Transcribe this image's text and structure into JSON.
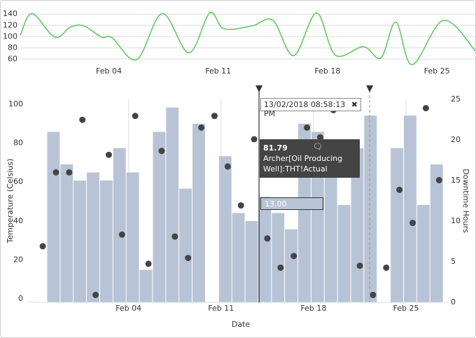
{
  "chart_data": [
    {
      "type": "line",
      "color": "#5cc45c",
      "grid": true,
      "x": [
        "2018-01-29T08:00",
        "2018-01-30T02:00",
        "2018-01-31T13:00",
        "2018-02-01T13:00",
        "2018-02-02T10:00",
        "2018-02-03T13:00",
        "2018-02-04T05:00",
        "2018-02-05T19:00",
        "2018-02-07T10:00",
        "2018-02-09T03:00",
        "2018-02-10T11:00",
        "2018-02-11T09:00",
        "2018-02-13T04:00",
        "2018-02-14T12:00",
        "2018-02-15T20:00",
        "2018-02-17T07:00",
        "2018-02-18T12:00",
        "2018-02-20T07:00",
        "2018-02-21T10:00",
        "2018-02-22T09:00",
        "2018-02-23T10:00",
        "2018-02-25T10:00",
        "2018-02-27T11:00"
      ],
      "values": [
        102,
        141,
        99,
        117,
        119,
        99,
        98,
        59,
        141,
        71,
        142,
        114,
        119,
        129,
        66,
        142,
        67,
        82,
        62,
        126,
        50,
        129,
        75
      ],
      "xlim": [
        "2018-01-29T08:00",
        "2018-02-27T11:00"
      ],
      "ylim": [
        48,
        149
      ],
      "yticks": [
        60,
        80,
        100,
        120,
        140
      ],
      "xticks": [
        {
          "value": "2018-02-04T00:00",
          "label": "Feb 04"
        },
        {
          "value": "2018-02-11T00:00",
          "label": "Feb 11"
        },
        {
          "value": "2018-02-18T00:00",
          "label": "Feb 18"
        },
        {
          "value": "2018-02-25T00:00",
          "label": "Feb 25"
        }
      ]
    },
    {
      "type": "bar",
      "xlabel": "Date",
      "ylabel": "Temperature (Celsius)",
      "y2label": "Downtime Hours",
      "xlim": [
        "2018-01-27T08:00",
        "2018-02-28T03:00"
      ],
      "ylim": [
        -1.8,
        102.5
      ],
      "y2lim": [
        0,
        25
      ],
      "yticks": [
        0,
        20,
        40,
        60,
        80,
        100
      ],
      "y2ticks": [
        0,
        5,
        10,
        15,
        20,
        25
      ],
      "grid": true,
      "xticks": [
        {
          "value": "2018-02-04T00:00",
          "label": "Feb 04"
        },
        {
          "value": "2018-02-11T00:00",
          "label": "Feb 11"
        },
        {
          "value": "2018-02-18T00:00",
          "label": "Feb 18"
        },
        {
          "value": "2018-02-25T00:00",
          "label": "Feb 25"
        }
      ],
      "series": [
        {
          "type": "bar",
          "axis": "y2",
          "color": "#b8c4d6",
          "x": [
            "2018-01-29T00:00",
            "2018-01-30T00:00",
            "2018-01-31T00:00",
            "2018-02-01T00:00",
            "2018-02-02T00:00",
            "2018-02-03T00:00",
            "2018-02-04T00:00",
            "2018-02-05T00:00",
            "2018-02-06T00:00",
            "2018-02-07T00:00",
            "2018-02-08T00:00",
            "2018-02-09T00:00",
            "2018-02-10T00:00",
            "2018-02-11T00:00",
            "2018-02-12T00:00",
            "2018-02-13T00:00",
            "2018-02-14T00:00",
            "2018-02-15T00:00",
            "2018-02-16T00:00",
            "2018-02-17T00:00",
            "2018-02-18T00:00",
            "2018-02-19T00:00",
            "2018-02-20T00:00",
            "2018-02-21T00:00",
            "2018-02-22T00:00",
            "2018-02-23T00:00",
            "2018-02-24T00:00",
            "2018-02-25T00:00",
            "2018-02-26T00:00",
            "2018-02-27T00:00"
          ],
          "values": [
            21,
            17,
            15,
            16,
            15,
            19,
            16,
            4,
            21,
            24,
            14,
            22,
            null,
            18,
            11,
            10,
            13,
            11,
            9,
            22,
            21,
            17,
            12,
            19,
            23,
            null,
            19,
            23,
            12,
            17
          ]
        },
        {
          "type": "scatter",
          "color": "#444444",
          "x": [
            "2018-01-28T00:00",
            "2018-01-29T00:00",
            "2018-01-30T00:00",
            "2018-01-31T00:00",
            "2018-02-01T00:00",
            "2018-02-02T00:00",
            "2018-02-03T00:00",
            "2018-02-04T00:00",
            "2018-02-05T00:00",
            "2018-02-06T00:00",
            "2018-02-07T00:00",
            "2018-02-08T00:00",
            "2018-02-09T00:00",
            "2018-02-10T00:00",
            "2018-02-11T00:00",
            "2018-02-12T00:00",
            "2018-02-13T00:00",
            "2018-02-14T00:00",
            "2018-02-15T00:00",
            "2018-02-16T00:00",
            "2018-02-17T00:00",
            "2018-02-18T00:00",
            "2018-02-19T00:00",
            "2018-02-20T00:00",
            "2018-02-21T00:00",
            "2018-02-22T00:00",
            "2018-02-23T00:00",
            "2018-02-24T00:00",
            "2018-02-25T00:00",
            "2018-02-26T00:00",
            "2018-02-27T00:00"
          ],
          "values": [
            27,
            65,
            65,
            92,
            2,
            74,
            33,
            94,
            18,
            76,
            32,
            21,
            88,
            94,
            68,
            48,
            82,
            31,
            16,
            22,
            88,
            83,
            97,
            null,
            17,
            2,
            16,
            56,
            39,
            98,
            61
          ]
        }
      ],
      "markers": [
        "2018-02-13T20:58:13",
        "2018-02-22T06:00"
      ],
      "tooltip": {
        "time": "13/02/2018 08:58:13 PM",
        "value": "81.79",
        "label": "Archer[Oil Producing Well]:THT!Actual",
        "bar_value": "13.00"
      }
    }
  ]
}
